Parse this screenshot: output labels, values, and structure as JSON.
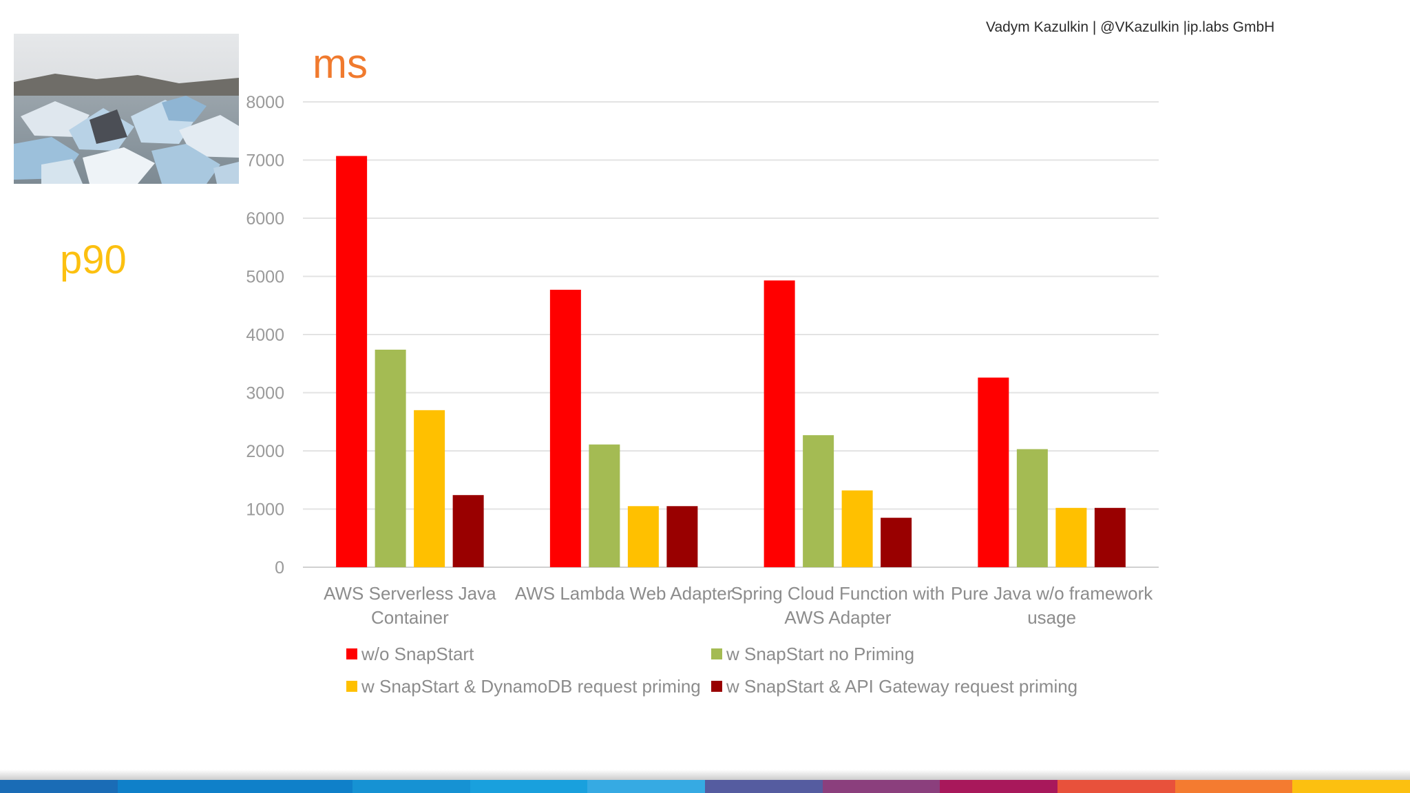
{
  "header": {
    "author_line": "Vadym Kazulkin | @VKazulkin |ip.labs GmbH"
  },
  "slide": {
    "unit_label": "ms",
    "metric_label": "p90"
  },
  "chart_data": {
    "type": "bar",
    "title": "",
    "ylabel": "ms",
    "xlabel": "",
    "ylim": [
      0,
      8000
    ],
    "yticks": [
      0,
      1000,
      2000,
      3000,
      4000,
      5000,
      6000,
      7000,
      8000
    ],
    "grid": true,
    "legend_position": "bottom",
    "categories": [
      [
        "AWS Serverless Java",
        "Container"
      ],
      [
        "AWS Lambda Web Adapter"
      ],
      [
        "Spring Cloud Function with",
        "AWS Adapter"
      ],
      [
        "Pure Java w/o framework",
        "usage"
      ]
    ],
    "series": [
      {
        "name": "w/o SnapStart",
        "color": "#ff0000",
        "values": [
          7070,
          4770,
          4930,
          3260
        ]
      },
      {
        "name": "w SnapStart no Priming",
        "color": "#a4bb53",
        "values": [
          3740,
          2110,
          2270,
          2030
        ]
      },
      {
        "name": "w SnapStart & DynamoDB request priming",
        "color": "#ffc000",
        "values": [
          2700,
          1050,
          1320,
          1020
        ]
      },
      {
        "name": "w SnapStart & API Gateway request priming",
        "color": "#990000",
        "values": [
          1240,
          1050,
          850,
          1020
        ]
      }
    ]
  },
  "footer": {
    "colors": [
      "#1a6cb6",
      "#0f80c9",
      "#0f80c9",
      "#1692d3",
      "#19a0dd",
      "#36aae3",
      "#555ca0",
      "#8b3f7d",
      "#a8185b",
      "#e8513b",
      "#f47b30",
      "#fcc010"
    ]
  }
}
